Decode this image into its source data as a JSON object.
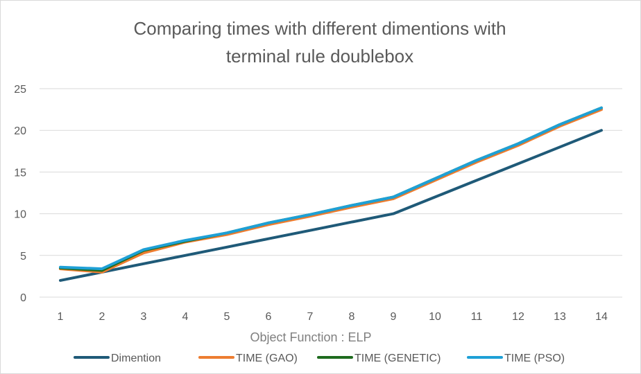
{
  "chart_data": {
    "type": "line",
    "title_line1": "Comparing  times with different dimentions with",
    "title_line2": "terminal rule doublebox",
    "xlabel": "Object  Function : ELP",
    "ylabel": "",
    "categories": [
      "1",
      "2",
      "3",
      "4",
      "5",
      "6",
      "7",
      "8",
      "9",
      "10",
      "11",
      "12",
      "13",
      "14"
    ],
    "yticks": [
      "0",
      "5",
      "10",
      "15",
      "20",
      "25"
    ],
    "ylim": [
      0,
      25
    ],
    "grid": true,
    "legend_position": "bottom",
    "series": [
      {
        "name": "Dimention",
        "color": "#1f5a78",
        "values": [
          2,
          3,
          4,
          5,
          6,
          7,
          8,
          9,
          10,
          12,
          14,
          16,
          18,
          20
        ]
      },
      {
        "name": "TIME (GAO)",
        "color": "#ed7d31",
        "values": [
          3.4,
          3.0,
          5.3,
          6.6,
          7.5,
          8.7,
          9.7,
          10.8,
          11.8,
          14.0,
          16.2,
          18.2,
          20.5,
          22.5
        ]
      },
      {
        "name": "TIME (GENETIC)",
        "color": "#1e6b1e",
        "values": [
          3.5,
          3.2,
          5.6,
          6.7,
          7.7,
          8.9,
          9.9,
          11.0,
          12.0,
          14.2,
          16.4,
          18.4,
          20.7,
          22.7
        ]
      },
      {
        "name": "TIME (PSO)",
        "color": "#1ea0d6",
        "values": [
          3.6,
          3.4,
          5.7,
          6.8,
          7.7,
          8.9,
          9.9,
          11.0,
          12.0,
          14.2,
          16.4,
          18.4,
          20.7,
          22.7
        ]
      }
    ]
  }
}
